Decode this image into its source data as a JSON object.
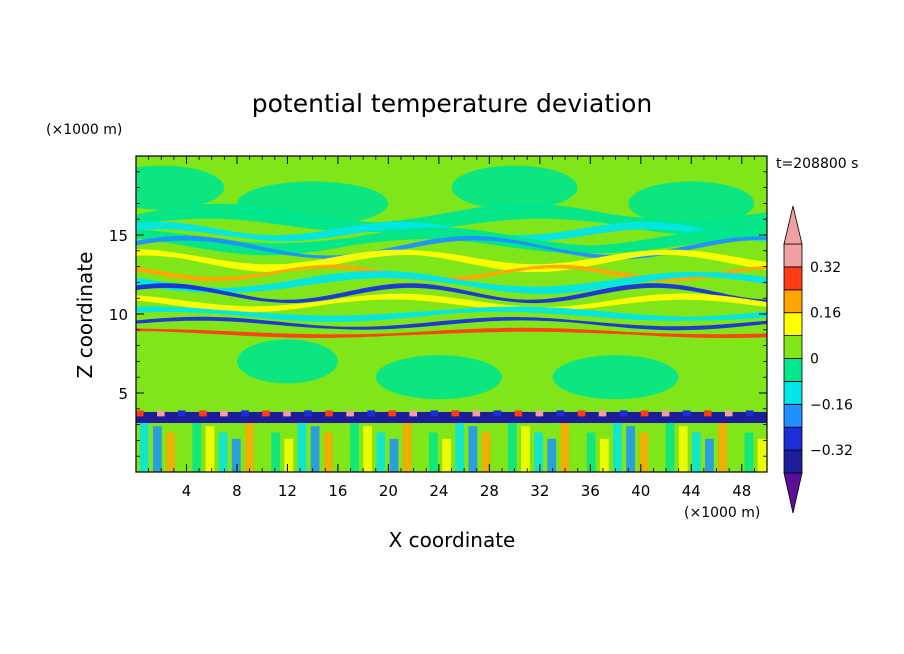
{
  "chart_data": {
    "type": "heatmap",
    "title": "potential temperature deviation",
    "xlabel": "X coordinate",
    "ylabel": "Z coordinate",
    "x_unit": "(×1000 m)",
    "y_unit": "(×1000 m)",
    "time_label": "t=208800 s",
    "xlim": [
      0,
      50
    ],
    "ylim": [
      0,
      20
    ],
    "x_ticks": [
      4,
      8,
      12,
      16,
      20,
      24,
      28,
      32,
      36,
      40,
      44,
      48
    ],
    "y_ticks": [
      5,
      10,
      15
    ],
    "colorbar": {
      "levels": [
        -0.4,
        -0.32,
        -0.24,
        -0.16,
        -0.08,
        0,
        0.08,
        0.16,
        0.24,
        0.32,
        0.4
      ],
      "tick_labels": [
        "0.32",
        "0.16",
        "0",
        "−0.16",
        "−0.32"
      ],
      "tick_values": [
        0.32,
        0.16,
        0,
        -0.16,
        -0.32
      ],
      "colors": [
        "#5a0f9a",
        "#1d1d9a",
        "#1a2fd8",
        "#1e90ff",
        "#00e6e6",
        "#00e68c",
        "#80e619",
        "#ffff00",
        "#ffa500",
        "#ff3c14",
        "#f0a0a0"
      ],
      "extend": "both"
    },
    "background_color": "#80e619",
    "bands": [
      {
        "z": 16.0,
        "color": "#00e68c",
        "value": "-0.04",
        "amp": 0.5,
        "k": 1.0,
        "phase": 0.0,
        "w": 1.0
      },
      {
        "z": 15.2,
        "color": "#00e6e6",
        "value": "-0.12",
        "amp": 0.4,
        "k": 1.3,
        "phase": 1.0,
        "w": 0.5
      },
      {
        "z": 14.6,
        "color": "#00e68c",
        "value": "-0.04",
        "amp": 0.5,
        "k": 1.0,
        "phase": 2.0,
        "w": 0.8
      },
      {
        "z": 14.2,
        "color": "#1e90ff",
        "value": "-0.20",
        "amp": 0.6,
        "k": 1.1,
        "phase": 0.5,
        "w": 0.3
      },
      {
        "z": 13.4,
        "color": "#ffff00",
        "value": "0.20",
        "amp": 0.5,
        "k": 1.2,
        "phase": 1.5,
        "w": 0.5
      },
      {
        "z": 12.6,
        "color": "#ffa500",
        "value": "0.28",
        "amp": 0.4,
        "k": 1.4,
        "phase": 2.5,
        "w": 0.3
      },
      {
        "z": 12.0,
        "color": "#00e6e6",
        "value": "-0.12",
        "amp": 0.5,
        "k": 1.0,
        "phase": 3.0,
        "w": 0.5
      },
      {
        "z": 11.3,
        "color": "#1a2fd8",
        "value": "-0.28",
        "amp": 0.5,
        "k": 1.3,
        "phase": 0.8,
        "w": 0.3
      },
      {
        "z": 10.7,
        "color": "#ffff00",
        "value": "0.20",
        "amp": 0.4,
        "k": 1.1,
        "phase": 2.2,
        "w": 0.4
      },
      {
        "z": 10.0,
        "color": "#00e6e6",
        "value": "-0.12",
        "amp": 0.3,
        "k": 0.9,
        "phase": 1.2,
        "w": 0.4
      },
      {
        "z": 9.4,
        "color": "#1a2fd8",
        "value": "-0.28",
        "amp": 0.3,
        "k": 1.0,
        "phase": 0.3,
        "w": 0.25
      },
      {
        "z": 8.8,
        "color": "#ff3c14",
        "value": "0.36",
        "amp": 0.2,
        "k": 0.8,
        "phase": 1.7,
        "w": 0.25
      }
    ],
    "surface_layer": {
      "z_top": 3.8,
      "z_band": 3.5,
      "colors": [
        "#1d1d9a",
        "#ff3c14",
        "#f0a0a0",
        "#1a2fd8"
      ]
    },
    "lower_columns": {
      "z_bottom": 0,
      "z_top": 3.3,
      "colors": [
        "#00e6e6",
        "#ffff00",
        "#1e90ff",
        "#80e619",
        "#ffa500",
        "#00e68c"
      ]
    }
  }
}
